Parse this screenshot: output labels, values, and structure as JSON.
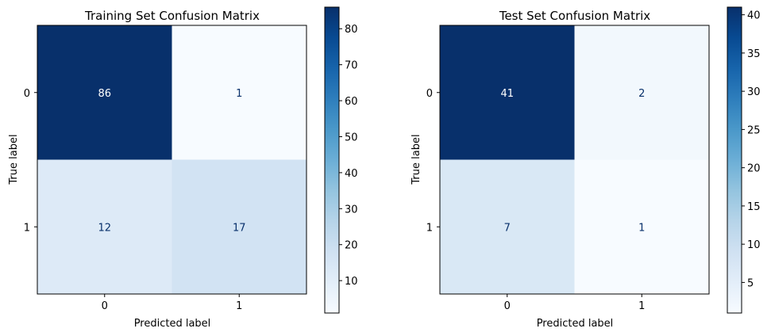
{
  "chart_data": [
    {
      "type": "heatmap",
      "title": "Training Set Confusion Matrix",
      "xlabel": "Predicted label",
      "ylabel": "True label",
      "x_categories": [
        "0",
        "1"
      ],
      "y_categories": [
        "0",
        "1"
      ],
      "values": [
        [
          86,
          1
        ],
        [
          12,
          17
        ]
      ],
      "colormap": "Blues",
      "colorbar": {
        "range": [
          1,
          86
        ],
        "ticks": [
          10,
          20,
          30,
          40,
          50,
          60,
          70,
          80
        ]
      }
    },
    {
      "type": "heatmap",
      "title": "Test Set Confusion Matrix",
      "xlabel": "Predicted label",
      "ylabel": "True label",
      "x_categories": [
        "0",
        "1"
      ],
      "y_categories": [
        "0",
        "1"
      ],
      "values": [
        [
          41,
          2
        ],
        [
          7,
          1
        ]
      ],
      "colormap": "Blues",
      "colorbar": {
        "range": [
          1,
          41
        ],
        "ticks": [
          5,
          10,
          15,
          20,
          25,
          30,
          35,
          40
        ]
      }
    }
  ],
  "colors": {
    "blues_ramp": [
      "#f7fbff",
      "#deebf7",
      "#c6dbef",
      "#9ecae1",
      "#6baed6",
      "#4292c6",
      "#2171b5",
      "#08519c",
      "#08306b"
    ],
    "text_on_dark": "#ffffff",
    "text_on_light": "#08306b",
    "axis": "#000000"
  }
}
